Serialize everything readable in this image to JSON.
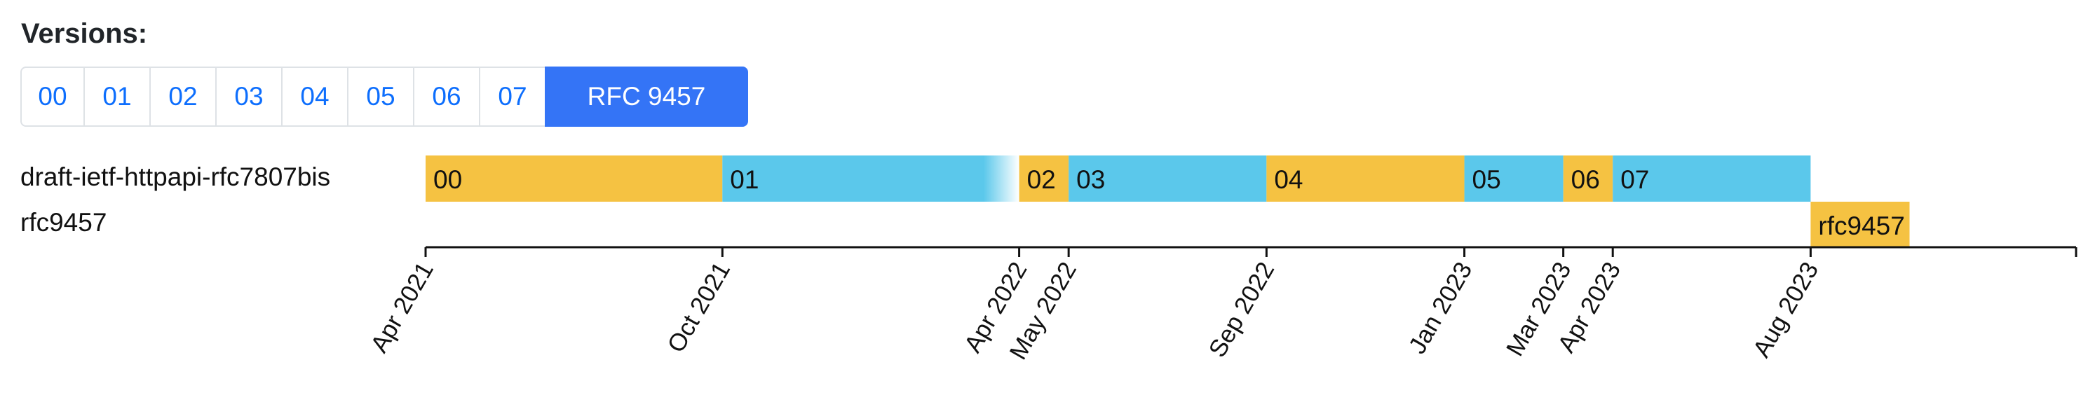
{
  "versions": {
    "heading": "Versions:",
    "buttons": [
      {
        "label": "00",
        "active": false
      },
      {
        "label": "01",
        "active": false
      },
      {
        "label": "02",
        "active": false
      },
      {
        "label": "03",
        "active": false
      },
      {
        "label": "04",
        "active": false
      },
      {
        "label": "05",
        "active": false
      },
      {
        "label": "06",
        "active": false
      },
      {
        "label": "07",
        "active": false
      },
      {
        "label": "RFC 9457",
        "active": true
      }
    ]
  },
  "timeline": {
    "rows": [
      {
        "label": "draft-ietf-httpapi-rfc7807bis"
      },
      {
        "label": "rfc9457"
      }
    ],
    "segments": [
      {
        "row": 0,
        "label": "00",
        "start": "2021-04",
        "end": "2021-10",
        "color": "#f5c242"
      },
      {
        "row": 0,
        "label": "01",
        "start": "2021-10",
        "end": "2022-04",
        "color": "#5bc8eb",
        "fade": true
      },
      {
        "row": 0,
        "label": "02",
        "start": "2022-04",
        "end": "2022-05",
        "color": "#f5c242"
      },
      {
        "row": 0,
        "label": "03",
        "start": "2022-05",
        "end": "2022-09",
        "color": "#5bc8eb"
      },
      {
        "row": 0,
        "label": "04",
        "start": "2022-09",
        "end": "2023-01",
        "color": "#f5c242"
      },
      {
        "row": 0,
        "label": "05",
        "start": "2023-01",
        "end": "2023-03",
        "color": "#5bc8eb"
      },
      {
        "row": 0,
        "label": "06",
        "start": "2023-03",
        "end": "2023-04",
        "color": "#f5c242"
      },
      {
        "row": 0,
        "label": "07",
        "start": "2023-04",
        "end": "2023-08",
        "color": "#5bc8eb"
      },
      {
        "row": 1,
        "label": "rfc9457",
        "start": "2023-08",
        "end": "2023-10",
        "color": "#f5c242"
      }
    ],
    "axis_ticks": [
      "Apr 2021",
      "Oct 2021",
      "Apr 2022",
      "May 2022",
      "Sep 2022",
      "Jan 2023",
      "Mar 2023",
      "Apr 2023",
      "Aug 2023"
    ],
    "tick_dates": [
      "2021-04",
      "2021-10",
      "2022-04",
      "2022-05",
      "2022-09",
      "2023-01",
      "2023-03",
      "2023-04",
      "2023-08"
    ]
  }
}
